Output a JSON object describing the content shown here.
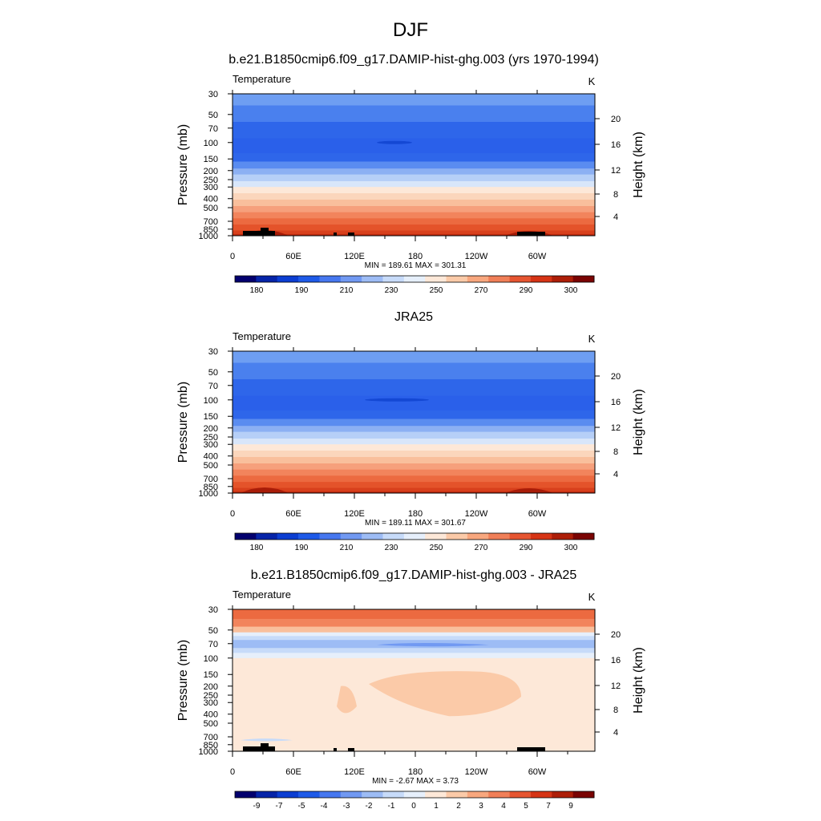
{
  "figure": {
    "title": "DJF"
  },
  "chart_data": [
    {
      "type": "heatmap",
      "title": "b.e21.B1850cmip6.f09_g17.DAMIP-hist-ghg.003 (yrs 1970-1994)",
      "variable_label": "Temperature",
      "units_label": "K",
      "ylabel": "Pressure (mb)",
      "y2label": "Height (km)",
      "x_ticks": [
        "0",
        "60E",
        "120E",
        "180",
        "120W",
        "60W"
      ],
      "y_ticks": [
        "30",
        "50",
        "70",
        "100",
        "150",
        "200",
        "250",
        "300",
        "400",
        "500",
        "700",
        "850",
        "1000"
      ],
      "y2_ticks": [
        "20",
        "16",
        "12",
        "8",
        "4"
      ],
      "stats": "MIN = 189.61  MAX = 301.31",
      "colorbar_labels": [
        "180",
        "190",
        "210",
        "230",
        "250",
        "270",
        "290",
        "300"
      ],
      "colorbar_colors": [
        "#03006e",
        "#0624a8",
        "#0c3ed2",
        "#1e5ae8",
        "#4677ef",
        "#7199f2",
        "#9dbcf5",
        "#c7dbf9",
        "#e6effb",
        "#fde8d8",
        "#fbcaa8",
        "#f8a77e",
        "#f07f58",
        "#e65531",
        "#d63415",
        "#ad1e08",
        "#7a0403"
      ],
      "levels": [
        {
          "p": 30,
          "color": "#6e9ef2"
        },
        {
          "p": 40,
          "color": "#4a80ee"
        },
        {
          "p": 60,
          "color": "#2e66ea"
        },
        {
          "p": 90,
          "color": "#2a60ea"
        },
        {
          "p": 130,
          "color": "#2e66ea"
        },
        {
          "p": 160,
          "color": "#5a8cf0"
        },
        {
          "p": 190,
          "color": "#8cb0f3"
        },
        {
          "p": 220,
          "color": "#b6cff7"
        },
        {
          "p": 260,
          "color": "#d8e6fa"
        },
        {
          "p": 300,
          "color": "#fde8d8"
        },
        {
          "p": 350,
          "color": "#fbd6bc"
        },
        {
          "p": 410,
          "color": "#f9bf9c"
        },
        {
          "p": 480,
          "color": "#f6a07c"
        },
        {
          "p": 560,
          "color": "#f2845c"
        },
        {
          "p": 650,
          "color": "#ec6a40"
        },
        {
          "p": 760,
          "color": "#e4532a"
        },
        {
          "p": 880,
          "color": "#d8401c"
        },
        {
          "p": 960,
          "color": "#c12c10"
        }
      ]
    },
    {
      "type": "heatmap",
      "title": "JRA25",
      "variable_label": "Temperature",
      "units_label": "K",
      "ylabel": "Pressure (mb)",
      "y2label": "Height (km)",
      "x_ticks": [
        "0",
        "60E",
        "120E",
        "180",
        "120W",
        "60W"
      ],
      "y_ticks": [
        "30",
        "50",
        "70",
        "100",
        "150",
        "200",
        "250",
        "300",
        "400",
        "500",
        "700",
        "850",
        "1000"
      ],
      "y2_ticks": [
        "20",
        "16",
        "12",
        "8",
        "4"
      ],
      "stats": "MIN = 189.11  MAX = 301.67",
      "colorbar_labels": [
        "180",
        "190",
        "210",
        "230",
        "250",
        "270",
        "290",
        "300"
      ],
      "colorbar_colors": [
        "#03006e",
        "#0624a8",
        "#0c3ed2",
        "#1e5ae8",
        "#4677ef",
        "#7199f2",
        "#9dbcf5",
        "#c7dbf9",
        "#e6effb",
        "#fde8d8",
        "#fbcaa8",
        "#f8a77e",
        "#f07f58",
        "#e65531",
        "#d63415",
        "#ad1e08",
        "#7a0403"
      ],
      "levels": [
        {
          "p": 30,
          "color": "#6e9ef2"
        },
        {
          "p": 40,
          "color": "#4a80ee"
        },
        {
          "p": 60,
          "color": "#2e66ea"
        },
        {
          "p": 90,
          "color": "#2a60ea"
        },
        {
          "p": 130,
          "color": "#2e66ea"
        },
        {
          "p": 160,
          "color": "#5a8cf0"
        },
        {
          "p": 190,
          "color": "#8cb0f3"
        },
        {
          "p": 220,
          "color": "#b6cff7"
        },
        {
          "p": 260,
          "color": "#d8e6fa"
        },
        {
          "p": 300,
          "color": "#fde8d8"
        },
        {
          "p": 350,
          "color": "#fbd6bc"
        },
        {
          "p": 410,
          "color": "#f9bf9c"
        },
        {
          "p": 480,
          "color": "#f6a07c"
        },
        {
          "p": 560,
          "color": "#f2845c"
        },
        {
          "p": 650,
          "color": "#ec6a40"
        },
        {
          "p": 760,
          "color": "#e4532a"
        },
        {
          "p": 880,
          "color": "#d8401c"
        },
        {
          "p": 960,
          "color": "#c12c10"
        }
      ]
    },
    {
      "type": "heatmap",
      "title": "b.e21.B1850cmip6.f09_g17.DAMIP-hist-ghg.003 - JRA25",
      "variable_label": "Temperature",
      "units_label": "K",
      "ylabel": "Pressure (mb)",
      "y2label": "Height (km)",
      "x_ticks": [
        "0",
        "60E",
        "120E",
        "180",
        "120W",
        "60W"
      ],
      "y_ticks": [
        "30",
        "50",
        "70",
        "100",
        "150",
        "200",
        "250",
        "300",
        "400",
        "500",
        "700",
        "850",
        "1000"
      ],
      "y2_ticks": [
        "20",
        "16",
        "12",
        "8",
        "4"
      ],
      "stats": "MIN =  -2.67  MAX =   3.73",
      "colorbar_labels": [
        "-9",
        "-7",
        "-5",
        "-4",
        "-3",
        "-2",
        "-1",
        "0",
        "1",
        "2",
        "3",
        "4",
        "5",
        "7",
        "9"
      ],
      "colorbar_colors": [
        "#03006e",
        "#0624a8",
        "#0c3ed2",
        "#1e5ae8",
        "#4677ef",
        "#7199f2",
        "#9dbcf5",
        "#c7dbf9",
        "#e6effb",
        "#fde8d8",
        "#fbcaa8",
        "#f8a77e",
        "#f07f58",
        "#e65531",
        "#d63415",
        "#ad1e08",
        "#7a0403"
      ],
      "levels": [
        {
          "p": 30,
          "color": "#ec6a40"
        },
        {
          "p": 38,
          "color": "#f2845c"
        },
        {
          "p": 46,
          "color": "#f9bf9c"
        },
        {
          "p": 53,
          "color": "#e6effb"
        },
        {
          "p": 58,
          "color": "#c7dbf9"
        },
        {
          "p": 64,
          "color": "#9dbcf5"
        },
        {
          "p": 78,
          "color": "#c7dbf9"
        },
        {
          "p": 88,
          "color": "#e6effb"
        },
        {
          "p": 100,
          "color": "#fde8d8"
        }
      ]
    }
  ]
}
